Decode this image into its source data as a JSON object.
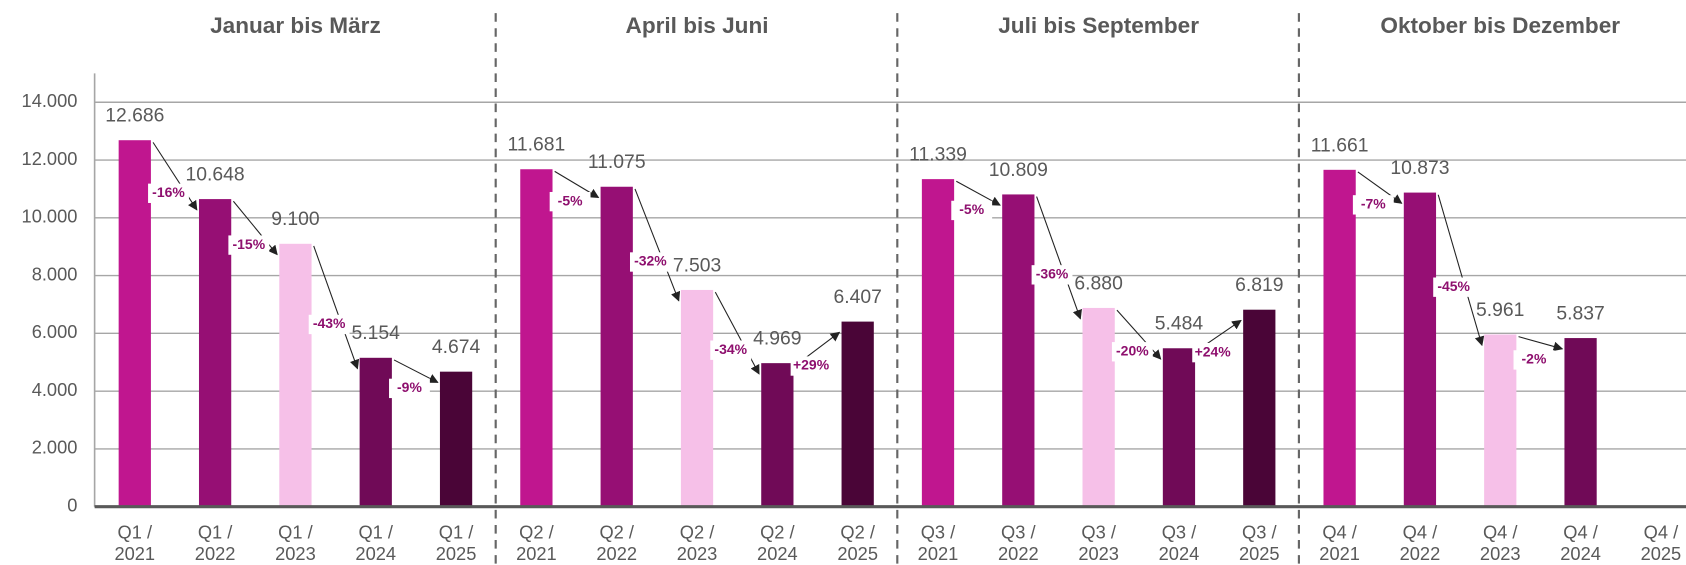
{
  "chart_data": {
    "type": "bar",
    "group_titles": [
      "Januar bis März",
      "April bis Juni",
      "Juli bis September",
      "Oktober bis Dezember"
    ],
    "categories": [
      [
        "Q1 /",
        "2021"
      ],
      [
        "Q1 /",
        "2022"
      ],
      [
        "Q1 /",
        "2023"
      ],
      [
        "Q1 /",
        "2024"
      ],
      [
        "Q1 /",
        "2025"
      ],
      [
        "Q2 /",
        "2021"
      ],
      [
        "Q2 /",
        "2022"
      ],
      [
        "Q2 /",
        "2023"
      ],
      [
        "Q2 /",
        "2024"
      ],
      [
        "Q2 /",
        "2025"
      ],
      [
        "Q3 /",
        "2021"
      ],
      [
        "Q3 /",
        "2022"
      ],
      [
        "Q3 /",
        "2023"
      ],
      [
        "Q3 /",
        "2024"
      ],
      [
        "Q3 /",
        "2025"
      ],
      [
        "Q4 /",
        "2021"
      ],
      [
        "Q4 /",
        "2022"
      ],
      [
        "Q4 /",
        "2023"
      ],
      [
        "Q4 /",
        "2024"
      ],
      [
        "Q4 /",
        "2025"
      ]
    ],
    "values": [
      12686,
      10648,
      9100,
      5154,
      4674,
      11681,
      11075,
      7503,
      4969,
      6407,
      11339,
      10809,
      6880,
      5484,
      6819,
      11661,
      10873,
      5961,
      5837,
      null
    ],
    "value_labels": [
      "12.686",
      "10.648",
      "9.100",
      "5.154",
      "4.674",
      "11.681",
      "11.075",
      "7.503",
      "4.969",
      "6.407",
      "11.339",
      "10.809",
      "6.880",
      "5.484",
      "6.819",
      "11.661",
      "10.873",
      "5.961",
      "5.837",
      null
    ],
    "colors": [
      "#c0168f",
      "#960f74",
      "#f6c0e8",
      "#700a57",
      "#4a0537"
    ],
    "annotations": [
      [
        "-16%",
        "-15%",
        "-43%",
        "-9%"
      ],
      [
        "-5%",
        "-32%",
        "-34%",
        "+29%"
      ],
      [
        "-5%",
        "-36%",
        "-20%",
        "+24%"
      ],
      [
        "-7%",
        "-45%",
        "-2%"
      ]
    ],
    "ylim": [
      0,
      15000
    ],
    "yticks": [
      0,
      {
        "value": 2000,
        "label": "2.000"
      },
      {
        "value": 4000,
        "label": "4.000"
      },
      {
        "value": 6000,
        "label": "6.000"
      },
      {
        "value": 8000,
        "label": "8.000"
      },
      {
        "value": 10000,
        "label": "10.000"
      },
      {
        "value": 12000,
        "label": "12.000"
      },
      {
        "value": 14000,
        "label": "14.000"
      }
    ],
    "grid": true
  }
}
